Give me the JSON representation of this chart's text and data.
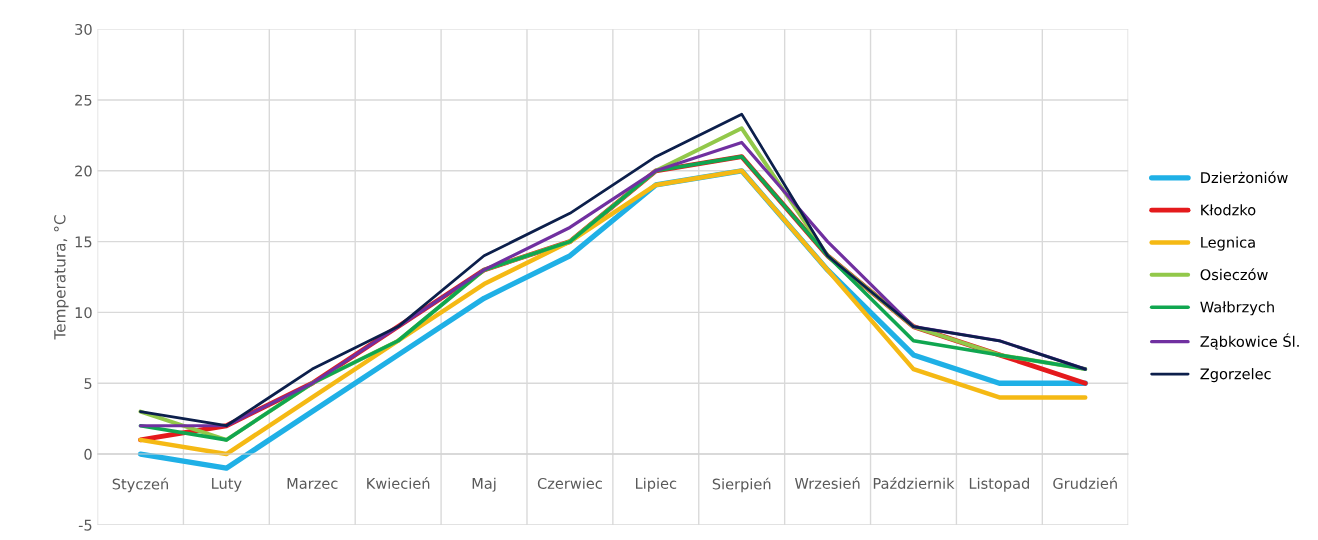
{
  "chart_data": {
    "type": "line",
    "ylabel": "Temperatura, °C",
    "categories": [
      "Styczeń",
      "Luty",
      "Marzec",
      "Kwiecień",
      "Maj",
      "Czerwiec",
      "Lipiec",
      "Sierpień",
      "Wrzesień",
      "Październik",
      "Listopad",
      "Grudzień"
    ],
    "series": [
      {
        "name": "Dzierżoniów",
        "color": "#1fb0e6",
        "values": [
          0,
          -1,
          3,
          7,
          11,
          14,
          19,
          20,
          13,
          7,
          5,
          5
        ]
      },
      {
        "name": "Kłodzko",
        "color": "#e41a1c",
        "values": [
          1,
          2,
          5,
          9,
          13,
          15,
          20,
          21,
          14,
          9,
          7,
          5
        ]
      },
      {
        "name": "Legnica",
        "color": "#f5b914",
        "values": [
          1,
          0,
          4,
          8,
          12,
          15,
          19,
          20,
          13,
          6,
          4,
          4
        ]
      },
      {
        "name": "Osieczów",
        "color": "#92c84a",
        "values": [
          3,
          1,
          5,
          8,
          13,
          15,
          20,
          23,
          14,
          9,
          7,
          6
        ]
      },
      {
        "name": "Wałbrzych",
        "color": "#10a650",
        "values": [
          2,
          1,
          5,
          8,
          13,
          15,
          20,
          21,
          14,
          8,
          7,
          6
        ]
      },
      {
        "name": "Ząbkowice Śl.",
        "color": "#7030a0",
        "values": [
          2,
          2,
          5,
          9,
          13,
          16,
          20,
          22,
          15,
          9,
          8,
          6
        ]
      },
      {
        "name": "Zgorzelec",
        "color": "#0c1f4b",
        "values": [
          3,
          2,
          6,
          9,
          14,
          17,
          21,
          24,
          14,
          9,
          8,
          6
        ]
      }
    ],
    "ylim": [
      -5,
      30
    ],
    "yticks": [
      -5,
      0,
      5,
      10,
      15,
      20,
      25,
      30
    ],
    "grid": true,
    "legend": "right"
  }
}
